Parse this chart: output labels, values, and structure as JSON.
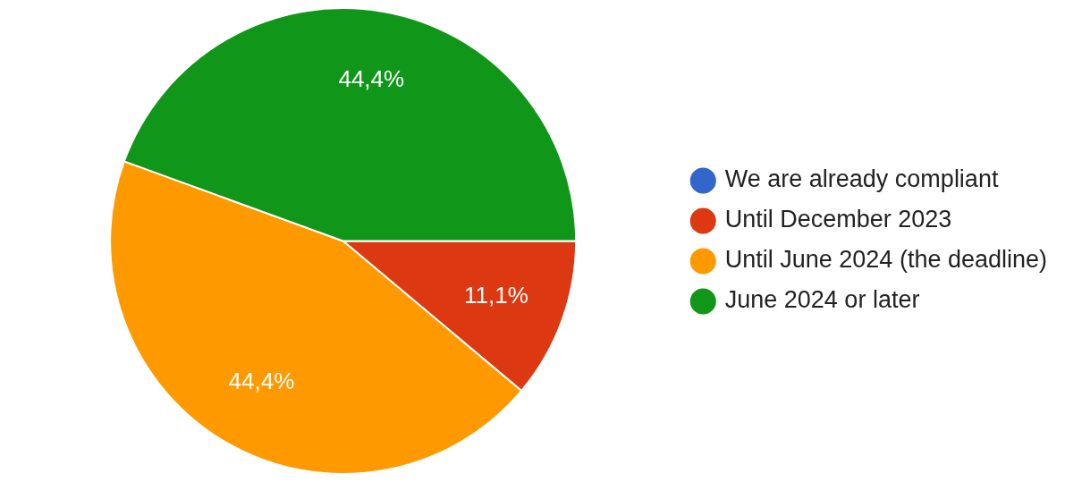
{
  "chart_data": {
    "type": "pie",
    "categories": [
      "We are already compliant",
      "Until December 2023",
      "Until June 2024 (the deadline)",
      "June 2024 or later"
    ],
    "values": [
      0,
      11.1,
      44.4,
      44.4
    ],
    "colors": [
      "#3366cc",
      "#dc3912",
      "#ff9900",
      "#109618"
    ],
    "value_labels": [
      null,
      "11,1%",
      "44,4%",
      "44,4%"
    ],
    "legend": "right"
  }
}
